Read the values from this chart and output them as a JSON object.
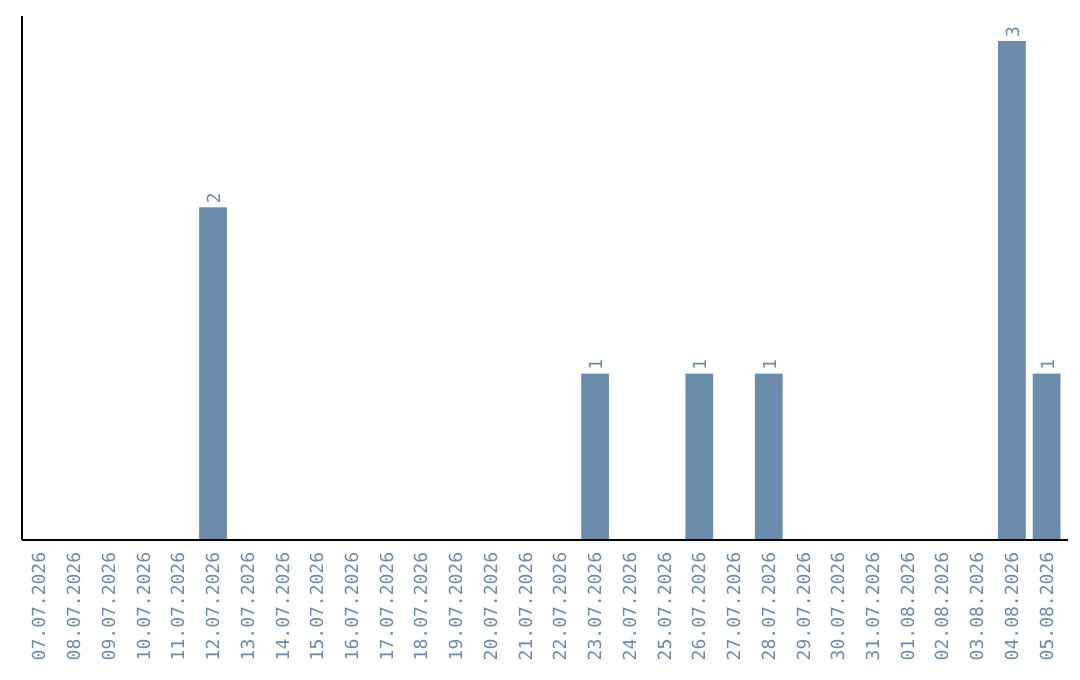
{
  "chart_data": {
    "type": "bar",
    "categories": [
      "07.07.2026",
      "08.07.2026",
      "09.07.2026",
      "10.07.2026",
      "11.07.2026",
      "12.07.2026",
      "13.07.2026",
      "14.07.2026",
      "15.07.2026",
      "16.07.2026",
      "17.07.2026",
      "18.07.2026",
      "19.07.2026",
      "20.07.2026",
      "21.07.2026",
      "22.07.2026",
      "23.07.2026",
      "24.07.2026",
      "25.07.2026",
      "26.07.2026",
      "27.07.2026",
      "28.07.2026",
      "29.07.2026",
      "30.07.2026",
      "31.07.2026",
      "01.08.2026",
      "02.08.2026",
      "03.08.2026",
      "04.08.2026",
      "05.08.2026"
    ],
    "values": [
      0,
      0,
      0,
      0,
      0,
      2,
      0,
      0,
      0,
      0,
      0,
      0,
      0,
      0,
      0,
      0,
      1,
      0,
      0,
      1,
      0,
      1,
      0,
      0,
      0,
      0,
      0,
      0,
      3,
      1
    ],
    "value_labels": [
      null,
      null,
      null,
      null,
      null,
      "2",
      null,
      null,
      null,
      null,
      null,
      null,
      null,
      null,
      null,
      null,
      "1",
      null,
      null,
      "1",
      null,
      "1",
      null,
      null,
      null,
      null,
      null,
      null,
      "3",
      "1"
    ],
    "color": "#6a8bab",
    "tick_labels": "x"
  }
}
